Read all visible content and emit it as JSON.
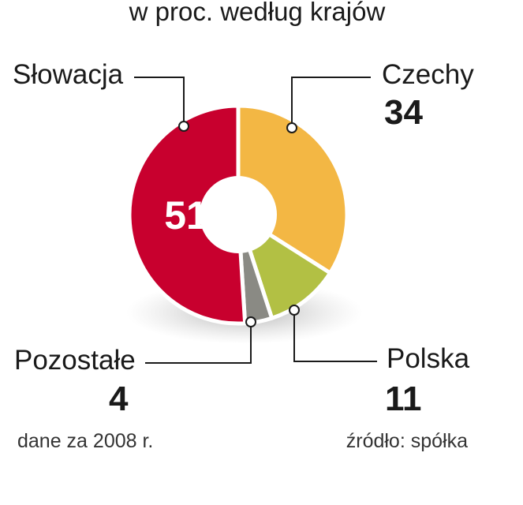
{
  "chart_data": {
    "type": "pie",
    "subtitle": "w proc. według krajów",
    "slices": [
      {
        "label": "Słowacja",
        "value": 51,
        "color": "#c8002e"
      },
      {
        "label": "Czechy",
        "value": 34,
        "color": "#f3b744"
      },
      {
        "label": "Polska",
        "value": 11,
        "color": "#b2c044"
      },
      {
        "label": "Pozostałe",
        "value": 4,
        "color": "#8a8a84"
      }
    ],
    "donut": true,
    "value_labels": {
      "inside": "51",
      "czechy": "34",
      "polska": "11",
      "pozostale": "4"
    }
  },
  "footnotes": {
    "left": "dane za 2008 r.",
    "right": "źródło: spółka"
  }
}
